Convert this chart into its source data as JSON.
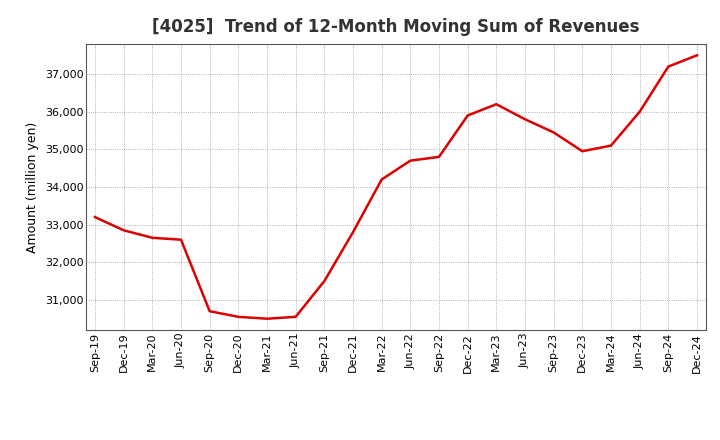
{
  "title": "[4025]  Trend of 12-Month Moving Sum of Revenues",
  "ylabel": "Amount (million yen)",
  "line_color": "#DD0000",
  "line_width": 1.8,
  "background_color": "#FFFFFF",
  "grid_color": "#999999",
  "x_labels": [
    "Sep-19",
    "Dec-19",
    "Mar-20",
    "Jun-20",
    "Sep-20",
    "Dec-20",
    "Mar-21",
    "Jun-21",
    "Sep-21",
    "Dec-21",
    "Mar-22",
    "Jun-22",
    "Sep-22",
    "Dec-22",
    "Mar-23",
    "Jun-23",
    "Sep-23",
    "Dec-23",
    "Mar-24",
    "Jun-24",
    "Sep-24",
    "Dec-24"
  ],
  "values": [
    33200,
    32850,
    32650,
    32600,
    30700,
    30550,
    30500,
    30550,
    31500,
    32800,
    34200,
    34700,
    34800,
    35900,
    36200,
    35800,
    35450,
    34950,
    35100,
    36000,
    37200,
    37500
  ],
  "ylim": [
    30200,
    37800
  ],
  "yticks": [
    31000,
    32000,
    33000,
    34000,
    35000,
    36000,
    37000
  ],
  "title_fontsize": 12,
  "label_fontsize": 9,
  "tick_fontsize": 8
}
